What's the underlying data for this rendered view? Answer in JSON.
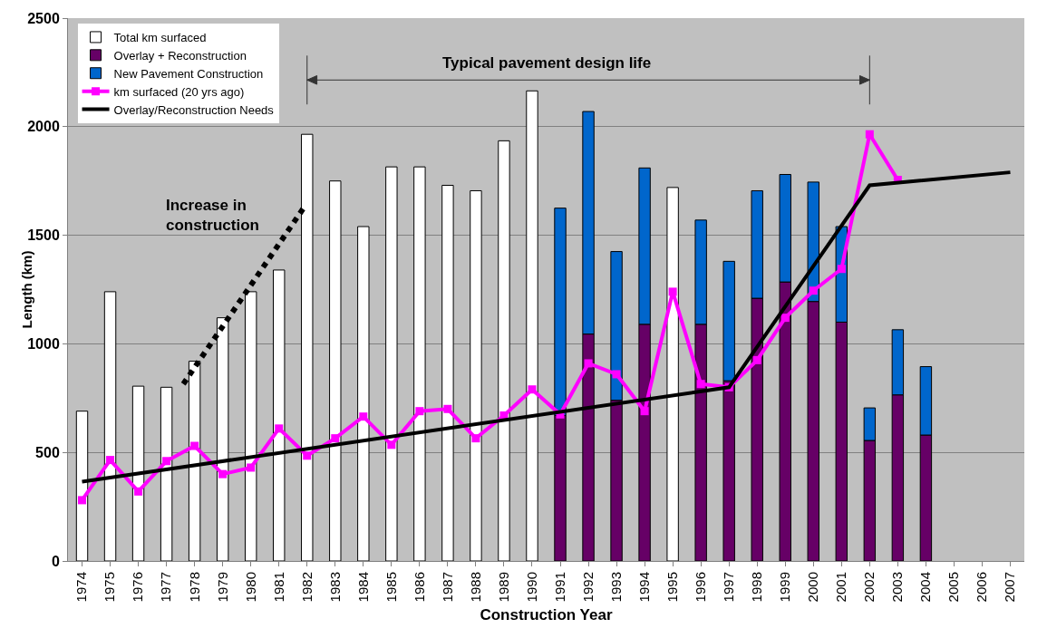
{
  "chart_data": {
    "type": "bar",
    "stacked": true,
    "xlabel": "Construction Year",
    "ylabel": "Length (km)",
    "x": [
      1974,
      1975,
      1976,
      1977,
      1978,
      1979,
      1980,
      1981,
      1982,
      1983,
      1984,
      1985,
      1986,
      1987,
      1988,
      1989,
      1990,
      1991,
      1992,
      1993,
      1994,
      1995,
      1996,
      1997,
      1998,
      1999,
      2000,
      2001,
      2002,
      2003,
      2004
    ],
    "xlim": [
      1973.5,
      2007.5
    ],
    "xticks": [
      1974,
      1975,
      1976,
      1977,
      1978,
      1979,
      1980,
      1981,
      1982,
      1983,
      1984,
      1985,
      1986,
      1987,
      1988,
      1989,
      1990,
      1991,
      1992,
      1993,
      1994,
      1995,
      1996,
      1997,
      1998,
      1999,
      2000,
      2001,
      2002,
      2003,
      2004,
      2005,
      2006,
      2007
    ],
    "ylim": [
      0,
      2500
    ],
    "yticks": [
      0,
      500,
      1000,
      1500,
      2000,
      2500
    ],
    "grid": "y",
    "legend": "top left",
    "series": [
      {
        "name": "Total km surfaced",
        "color": "#ffffff",
        "values": [
          690,
          1240,
          805,
          800,
          920,
          1120,
          1240,
          1340,
          1965,
          1750,
          1540,
          1815,
          1815,
          1730,
          1705,
          1935,
          2165,
          null,
          null,
          null,
          null,
          1720,
          null,
          null,
          null,
          null,
          null,
          null,
          null,
          null,
          null
        ]
      },
      {
        "name": "Overlay + Reconstruction",
        "color": "#660066",
        "values": [
          null,
          null,
          null,
          null,
          null,
          null,
          null,
          null,
          null,
          null,
          null,
          null,
          null,
          null,
          null,
          null,
          null,
          670,
          1045,
          740,
          1090,
          null,
          1090,
          830,
          1210,
          1285,
          1195,
          1100,
          555,
          765,
          580
        ]
      },
      {
        "name": "New Pavement Construction",
        "color": "#0066cc",
        "values": [
          null,
          null,
          null,
          null,
          null,
          null,
          null,
          null,
          null,
          null,
          null,
          null,
          null,
          null,
          null,
          null,
          null,
          955,
          1025,
          685,
          720,
          null,
          480,
          550,
          495,
          495,
          550,
          440,
          150,
          300,
          315
        ]
      },
      {
        "name": "km surfaced (20 yrs ago)",
        "type": "line",
        "marker": "square",
        "line_style": "solid",
        "color": "#ff00ff",
        "x": [
          1974,
          1975,
          1976,
          1977,
          1978,
          1979,
          1980,
          1981,
          1982,
          1983,
          1984,
          1985,
          1986,
          1987,
          1988,
          1989,
          1990,
          1991,
          1992,
          1993,
          1994,
          1995,
          1996,
          1997,
          1998,
          1999,
          2000,
          2001,
          2002,
          2003
        ],
        "values": [
          280,
          465,
          320,
          460,
          530,
          400,
          430,
          610,
          485,
          565,
          665,
          535,
          690,
          700,
          565,
          670,
          790,
          675,
          910,
          860,
          690,
          1240,
          815,
          800,
          925,
          1120,
          1245,
          1345,
          1965,
          1755
        ]
      },
      {
        "name": "Overlay/Reconstruction Needs",
        "type": "line",
        "marker": "none",
        "line_style": "solid",
        "color": "#000000",
        "x": [
          1974,
          1997,
          2002,
          2007
        ],
        "values": [
          365,
          800,
          1730,
          1790
        ]
      },
      {
        "type": "line",
        "marker": "none",
        "line_style": "dotted",
        "color": "#000000",
        "x": [
          1977.6,
          1981.9
        ],
        "values": [
          815,
          1630
        ]
      }
    ],
    "ref_lines": [
      {
        "axis": "x",
        "value": 1982,
        "color": "#333333"
      },
      {
        "axis": "x",
        "value": 2002,
        "color": "#333333"
      }
    ],
    "annotations": [
      "Increase in\nconstruction",
      "Typical pavement design life"
    ]
  }
}
